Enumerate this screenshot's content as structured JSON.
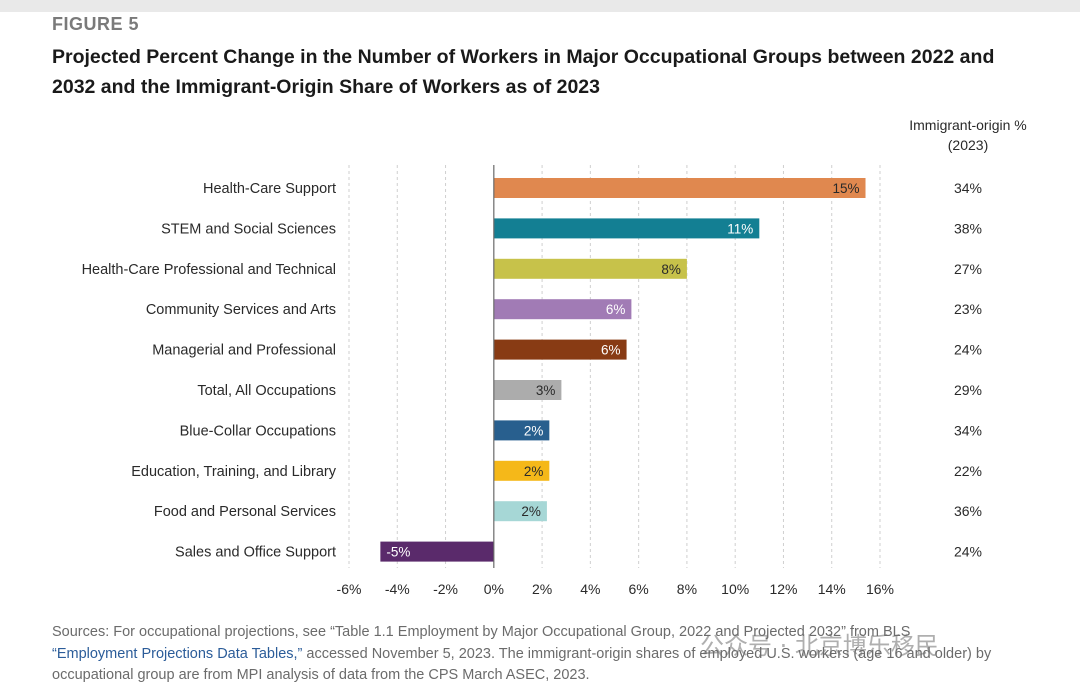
{
  "figure_label": "FIGURE 5",
  "title": "Projected Percent Change in the Number of Workers in Major Occupational Groups between 2022 and 2032 and the Immigrant-Origin Share of Workers as of 2023",
  "chart_data": {
    "type": "bar",
    "orientation": "horizontal",
    "categories": [
      "Health-Care Support",
      "STEM and Social Sciences",
      "Health-Care Professional and Technical",
      "Community Services and Arts",
      "Managerial and Professional",
      "Total, All Occupations",
      "Blue-Collar Occupations",
      "Education, Training, and Library",
      "Food and Personal Services",
      "Sales and Office Support"
    ],
    "values": [
      15.4,
      11.0,
      8.0,
      5.7,
      5.5,
      2.8,
      2.3,
      2.3,
      2.2,
      -4.7
    ],
    "data_labels": [
      "15%",
      "11%",
      "8%",
      "6%",
      "6%",
      "3%",
      "2%",
      "2%",
      "2%",
      "-5%"
    ],
    "colors": [
      "#e0884f",
      "#137f93",
      "#c7c24a",
      "#a17bb5",
      "#883b14",
      "#acacac",
      "#285f8e",
      "#f5b819",
      "#a6d7d6",
      "#5a2a6b"
    ],
    "label_colors": [
      "#2a2a2a",
      "#ffffff",
      "#2a2a2a",
      "#ffffff",
      "#ffffff",
      "#2a2a2a",
      "#ffffff",
      "#2a2a2a",
      "#2a2a2a",
      "#ffffff"
    ],
    "xlim": [
      -6,
      16
    ],
    "xticks": [
      "-6%",
      "-4%",
      "-2%",
      "0%",
      "2%",
      "4%",
      "6%",
      "8%",
      "10%",
      "12%",
      "14%",
      "16%"
    ],
    "grid": "vertical dashed",
    "right_column": {
      "header_line1": "Immigrant-origin %",
      "header_line2": "(2023)",
      "values": [
        "34%",
        "38%",
        "27%",
        "23%",
        "24%",
        "29%",
        "34%",
        "22%",
        "36%",
        "24%"
      ]
    }
  },
  "source": {
    "part1": "Sources: For occupational projections, see “Table 1.1 Employment by Major Occupational Group, 2022 and Projected 2032” from BLS",
    "link": "“Employment Projections Data Tables,”",
    "part2": " accessed November 5, 2023. The immigrant-origin shares of employed U.S. workers (age 16 and older) by occupational group are from MPI analysis of data from the CPS March ASEC, 2023."
  },
  "watermark": "公众号 · 北京博乐移民"
}
